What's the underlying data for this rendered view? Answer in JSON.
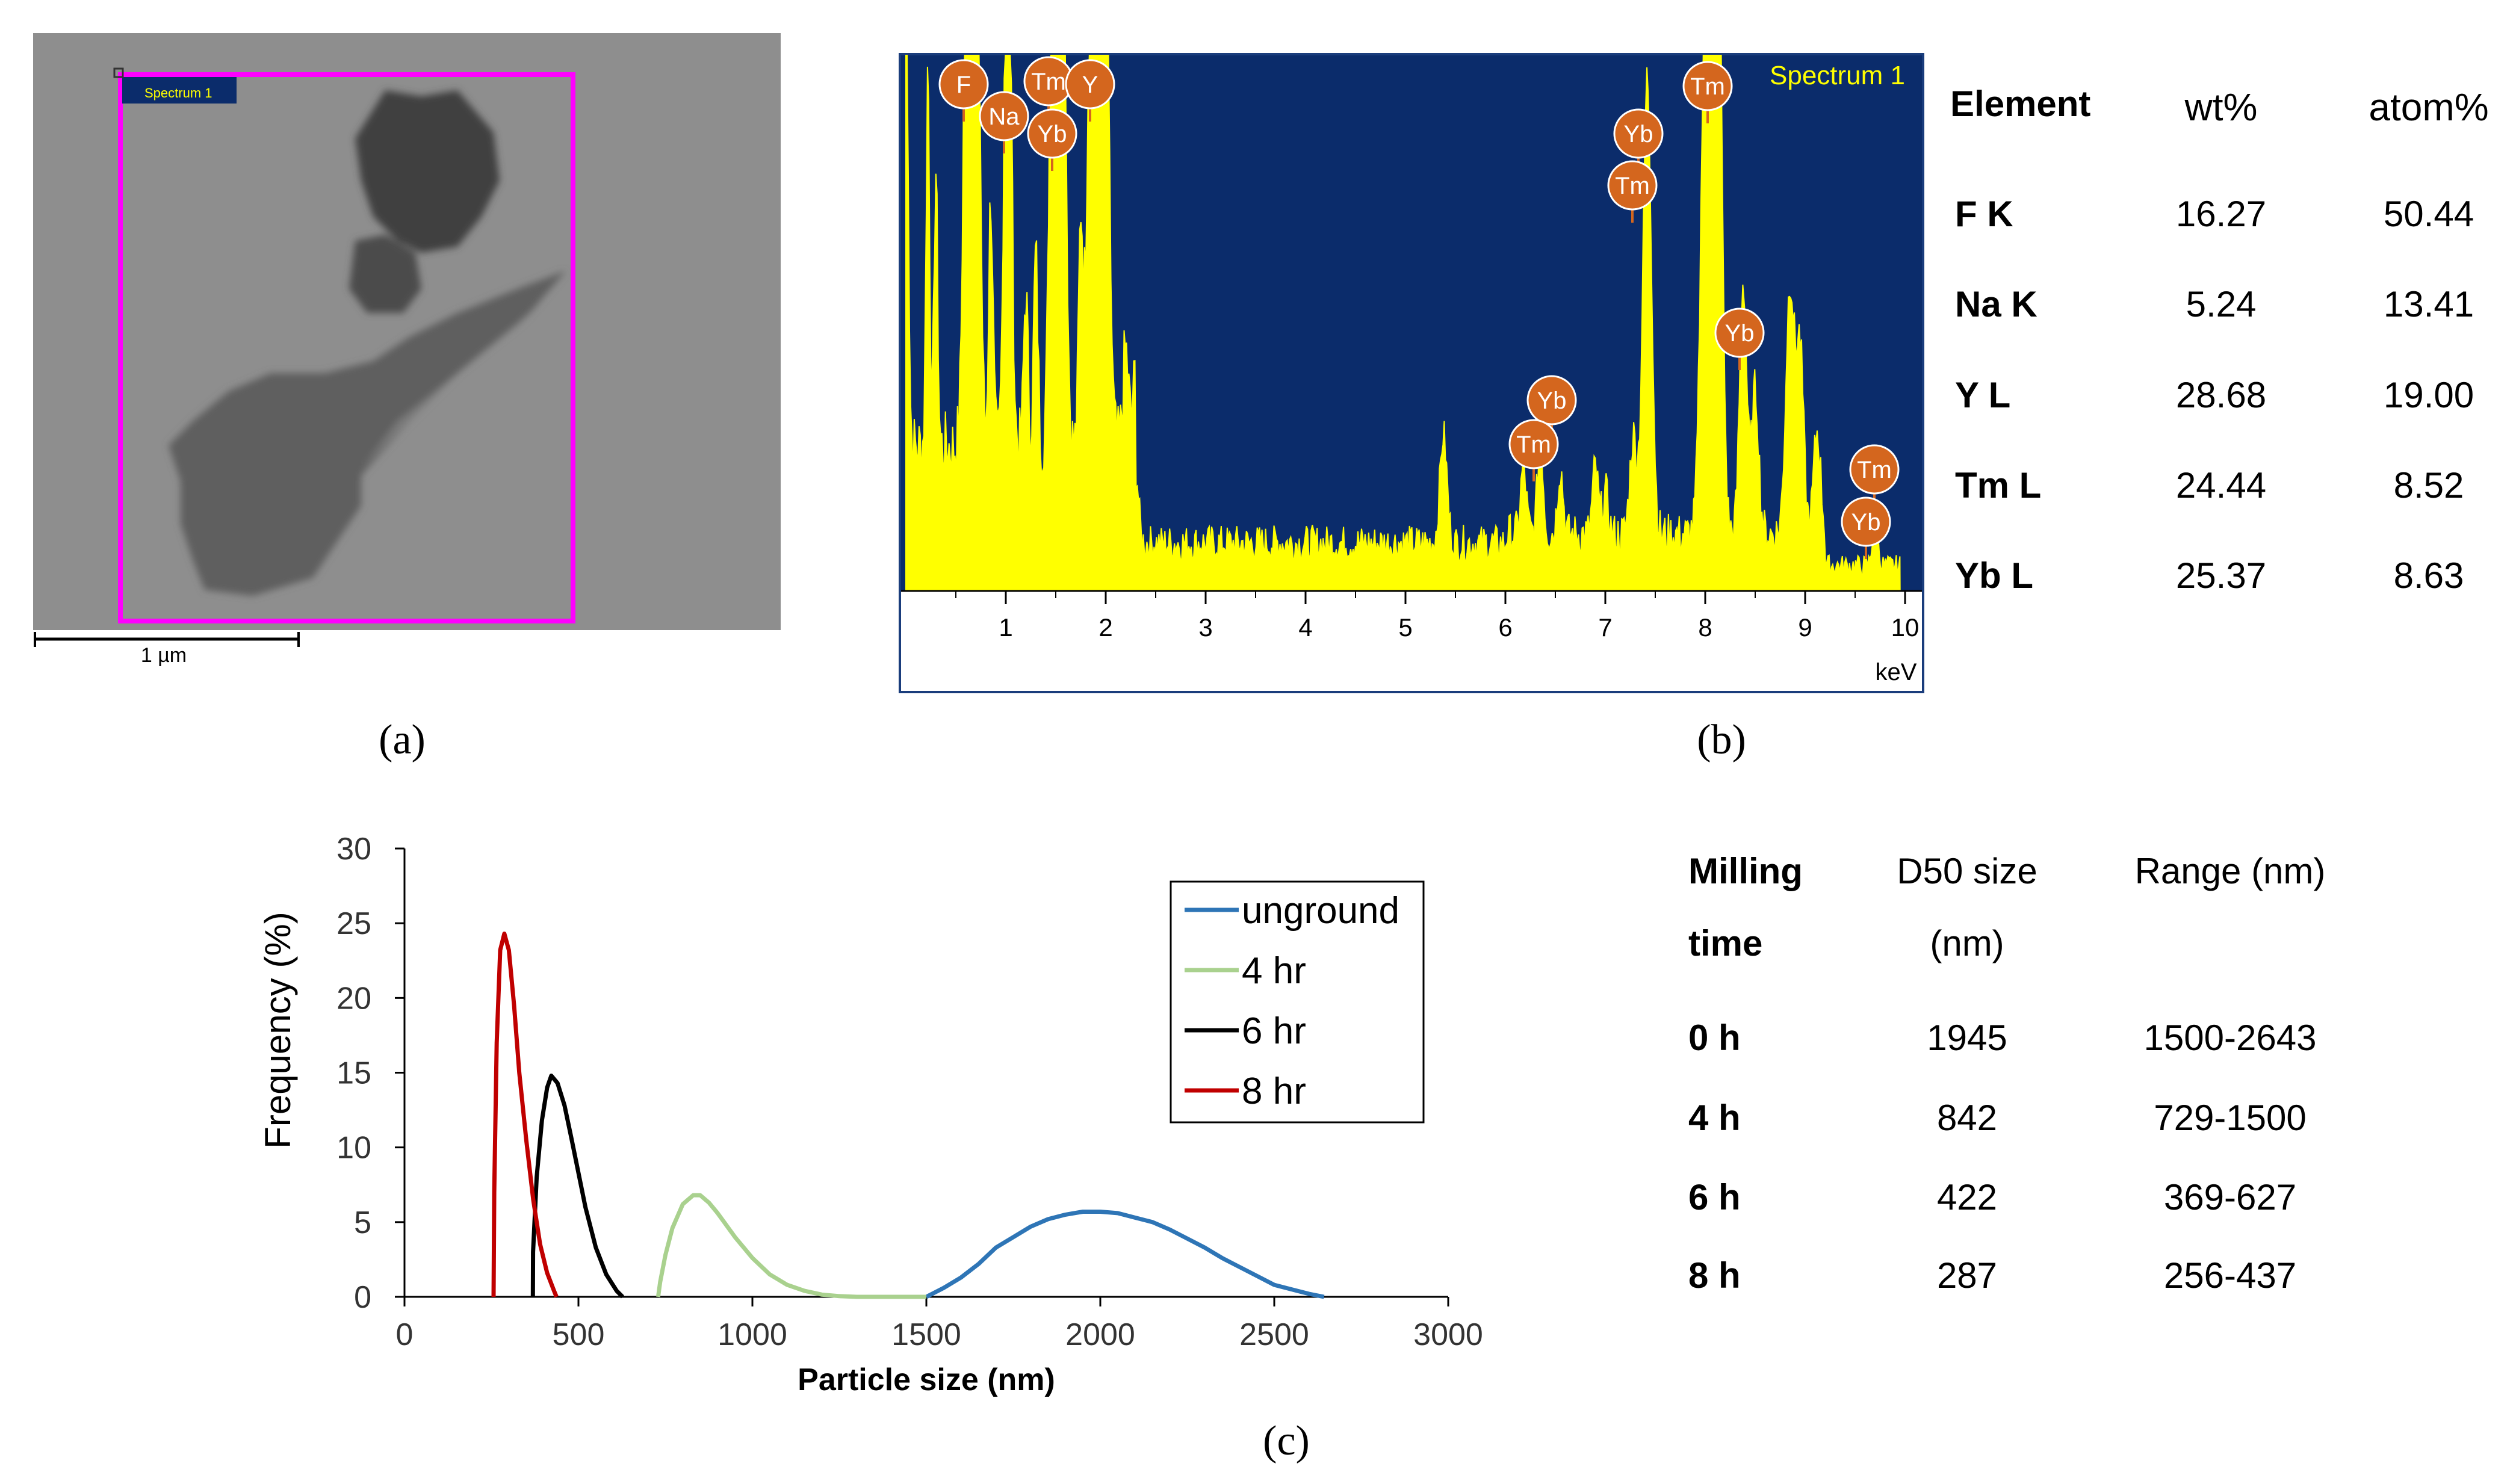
{
  "panel_labels": {
    "a": "(a)",
    "b": "(b)",
    "c": "(c)"
  },
  "panel_a": {
    "spectrum_tag": "Spectrum 1",
    "scale_bar_label": "1 µm"
  },
  "panel_b": {
    "spectrum_title": "Spectrum 1",
    "x_unit": "keV",
    "x_ticks": [
      "1",
      "2",
      "3",
      "4",
      "5",
      "6",
      "7",
      "8",
      "9",
      "10"
    ],
    "peak_tags": [
      "F",
      "Na",
      "Tm",
      "Yb",
      "Y",
      "Yb",
      "Tm",
      "Tm",
      "Yb",
      "Tm",
      "Yb",
      "Tm",
      "Yb"
    ],
    "colors": {
      "background": "#0b2c6b",
      "spectrum": "#ffff00",
      "tag": "#d4661e"
    },
    "table": {
      "headers": [
        "Element",
        "wt%",
        "atom%"
      ],
      "rows": [
        [
          "F K",
          "16.27",
          "50.44"
        ],
        [
          "Na K",
          "5.24",
          "13.41"
        ],
        [
          "Y L",
          "28.68",
          "19.00"
        ],
        [
          "Tm  L",
          "24.44",
          "8.52"
        ],
        [
          "Yb L",
          "25.37",
          "8.63"
        ]
      ]
    }
  },
  "panel_c": {
    "table": {
      "headers": [
        [
          "Milling",
          "time"
        ],
        [
          "D50 size",
          "(nm)"
        ],
        [
          "Range (nm)",
          ""
        ]
      ],
      "rows": [
        [
          "0 h",
          "1945",
          "1500-2643"
        ],
        [
          "4 h",
          "842",
          "729-1500"
        ],
        [
          "6 h",
          "422",
          "369-627"
        ],
        [
          "8 h",
          "287",
          "256-437"
        ]
      ]
    }
  },
  "chart_data": {
    "type": "line",
    "title": "",
    "xlabel": "Particle size (nm)",
    "ylabel": "Frequency (%)",
    "xlim": [
      0,
      3000
    ],
    "ylim": [
      0,
      30
    ],
    "x_ticks": [
      0,
      500,
      1000,
      1500,
      2000,
      2500,
      3000
    ],
    "y_ticks": [
      0,
      5,
      10,
      15,
      20,
      25,
      30
    ],
    "grid": false,
    "legend_position": "top-right",
    "series": [
      {
        "name": "unground",
        "color": "#2e75b6",
        "x": [
          1500,
          1550,
          1600,
          1650,
          1700,
          1750,
          1800,
          1850,
          1900,
          1950,
          2000,
          2050,
          2100,
          2150,
          2200,
          2250,
          2300,
          2350,
          2400,
          2450,
          2500,
          2550,
          2600,
          2643
        ],
        "y": [
          0,
          0.6,
          1.3,
          2.2,
          3.3,
          4.0,
          4.7,
          5.2,
          5.5,
          5.7,
          5.7,
          5.6,
          5.3,
          5.0,
          4.5,
          3.9,
          3.3,
          2.6,
          2.0,
          1.4,
          0.8,
          0.5,
          0.2,
          0
        ]
      },
      {
        "name": "4 hr",
        "color": "#a9d18e",
        "x": [
          729,
          735,
          750,
          770,
          800,
          830,
          850,
          875,
          900,
          950,
          1000,
          1050,
          1100,
          1150,
          1200,
          1250,
          1300,
          1400,
          1500
        ],
        "y": [
          0,
          1.0,
          2.8,
          4.6,
          6.2,
          6.8,
          6.8,
          6.3,
          5.6,
          4.0,
          2.6,
          1.5,
          0.8,
          0.4,
          0.15,
          0.05,
          0,
          0,
          0
        ]
      },
      {
        "name": "6 hr",
        "color": "#000000",
        "x": [
          369,
          369.5,
          380,
          395,
          410,
          422,
          440,
          460,
          480,
          500,
          520,
          550,
          580,
          610,
          627
        ],
        "y": [
          0,
          3.0,
          8.0,
          11.8,
          14.0,
          14.8,
          14.3,
          12.8,
          10.6,
          8.3,
          6.0,
          3.3,
          1.5,
          0.4,
          0
        ]
      },
      {
        "name": "8 hr",
        "color": "#c00000",
        "x": [
          256,
          258,
          265,
          275,
          287,
          300,
          315,
          330,
          350,
          370,
          390,
          410,
          430,
          437
        ],
        "y": [
          0,
          7.0,
          17.0,
          23.2,
          24.3,
          23.2,
          19.5,
          15.0,
          10.5,
          6.5,
          3.5,
          1.6,
          0.4,
          0
        ]
      }
    ]
  }
}
